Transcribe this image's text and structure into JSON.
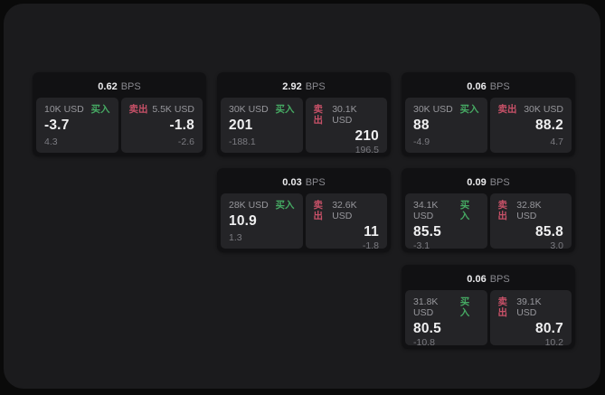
{
  "labels": {
    "bps_suffix": "BPS",
    "buy": "买入",
    "sell": "卖出"
  },
  "colors": {
    "buy_green": "#46a963",
    "sell_red": "#c85168"
  },
  "cards": [
    {
      "bps": "0.62",
      "buy": {
        "size": "10K USD",
        "value": "-3.7",
        "sub": "4.3"
      },
      "sell": {
        "size": "5.5K USD",
        "value": "-1.8",
        "sub": "-2.6"
      }
    },
    {
      "bps": "2.92",
      "buy": {
        "size": "30K USD",
        "value": "201",
        "sub": "-188.1"
      },
      "sell": {
        "size": "30.1K USD",
        "value": "210",
        "sub": "196.5"
      }
    },
    {
      "bps": "0.06",
      "buy": {
        "size": "30K USD",
        "value": "88",
        "sub": "-4.9"
      },
      "sell": {
        "size": "30K USD",
        "value": "88.2",
        "sub": "4.7"
      }
    },
    {
      "bps": "0.03",
      "buy": {
        "size": "28K USD",
        "value": "10.9",
        "sub": "1.3"
      },
      "sell": {
        "size": "32.6K USD",
        "value": "11",
        "sub": "-1.8"
      }
    },
    {
      "bps": "0.09",
      "buy": {
        "size": "34.1K USD",
        "value": "85.5",
        "sub": "-3.1"
      },
      "sell": {
        "size": "32.8K USD",
        "value": "85.8",
        "sub": "3.0"
      }
    },
    {
      "bps": "0.06",
      "buy": {
        "size": "31.8K USD",
        "value": "80.5",
        "sub": "-10.8"
      },
      "sell": {
        "size": "39.1K USD",
        "value": "80.7",
        "sub": "10.2"
      }
    }
  ]
}
